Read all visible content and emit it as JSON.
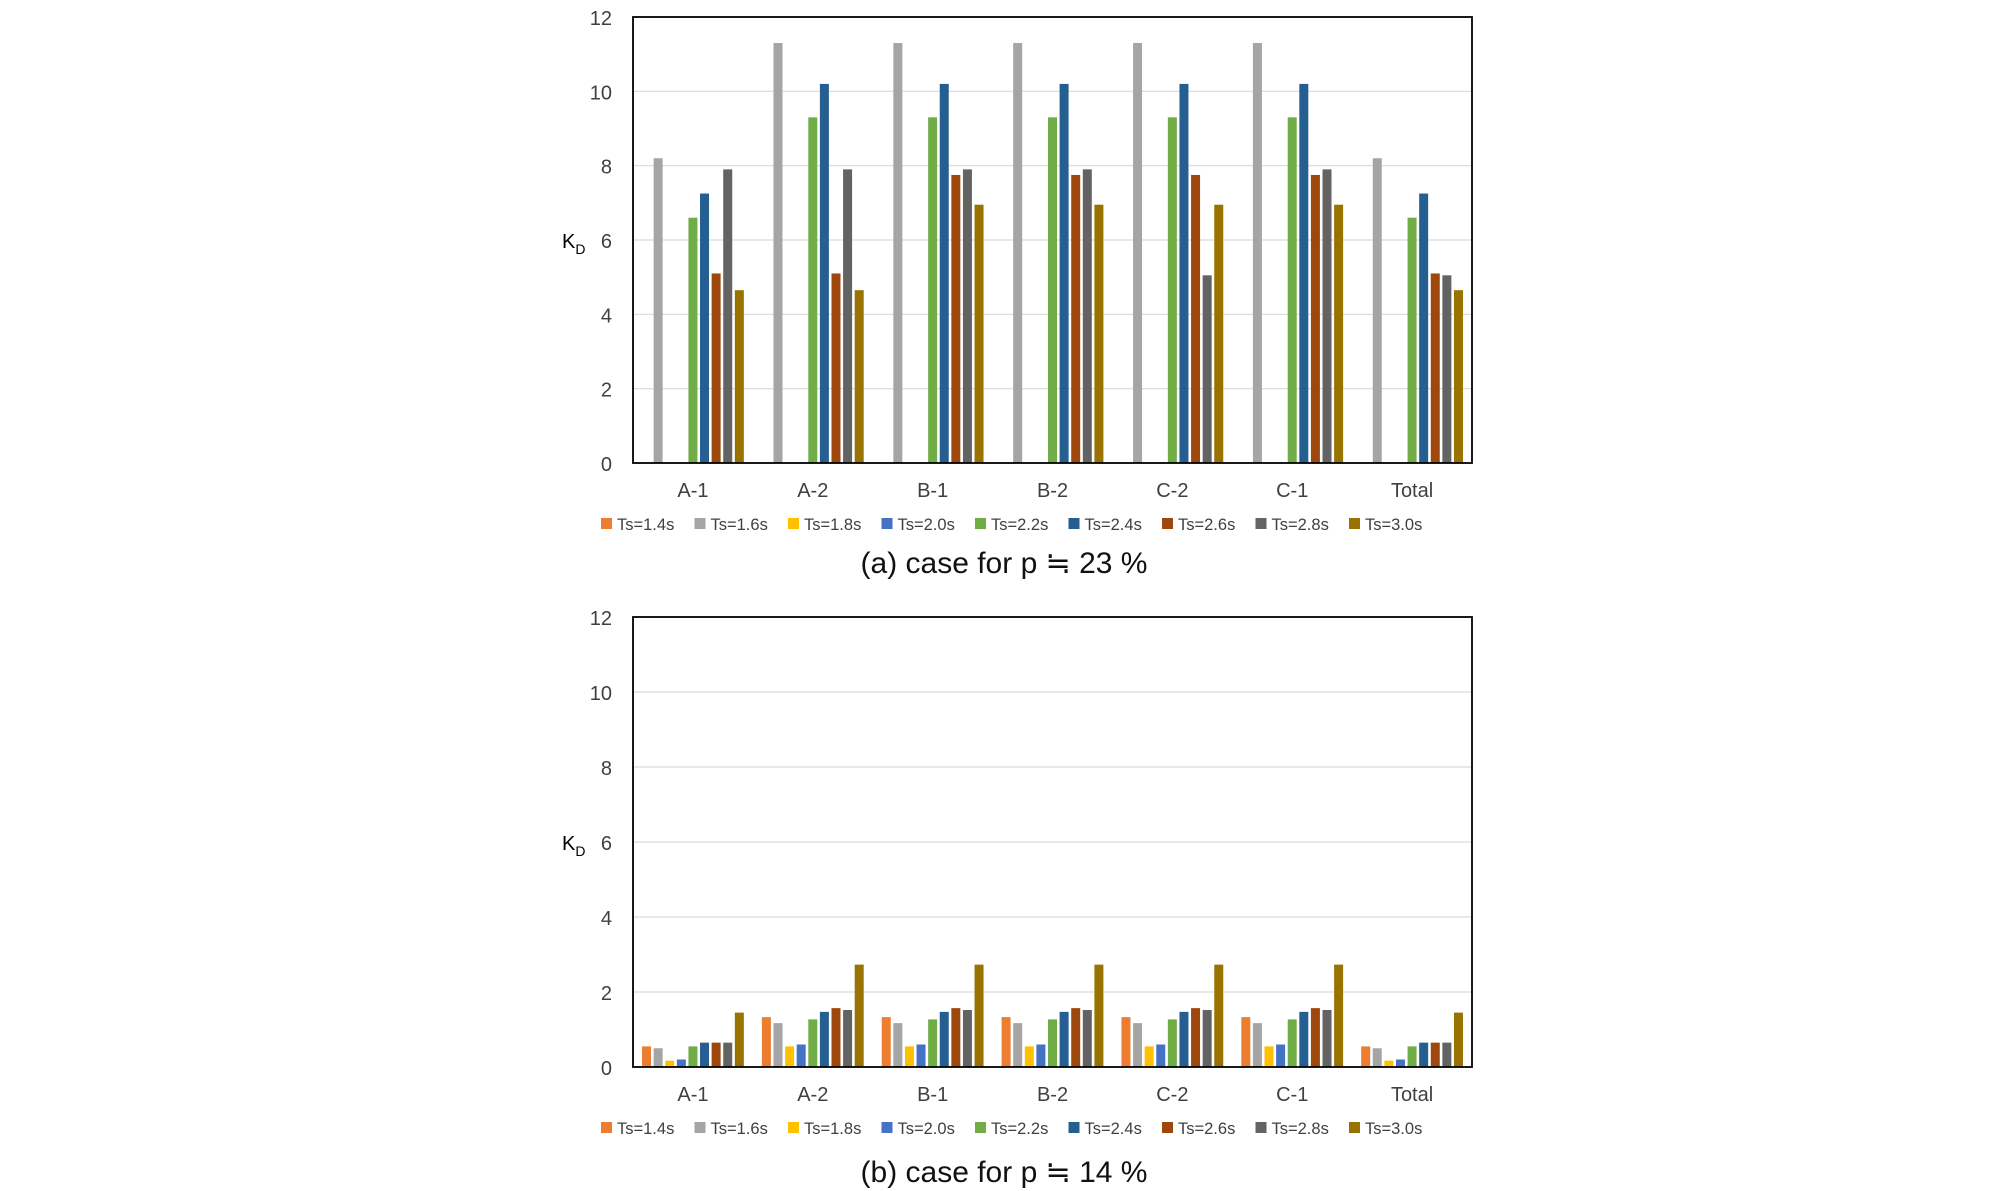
{
  "chart_data": [
    {
      "type": "bar",
      "ylabel": "KD",
      "ylim": [
        0,
        12
      ],
      "yticks": [
        0,
        2,
        4,
        6,
        8,
        10,
        12
      ],
      "grid": true,
      "legend": "bottom",
      "categories": [
        "A-1",
        "A-2",
        "B-1",
        "B-2",
        "C-2",
        "C-1",
        "Total"
      ],
      "caption": "(a) case for p ≒ 23 %",
      "series": [
        {
          "name": "Ts=1.4s",
          "color": "#ED7D31",
          "values": [
            0,
            0,
            0,
            0,
            0,
            0,
            0
          ]
        },
        {
          "name": "Ts=1.6s",
          "color": "#A5A5A5",
          "values": [
            8.2,
            11.3,
            11.3,
            11.3,
            11.3,
            11.3,
            8.2
          ]
        },
        {
          "name": "Ts=1.8s",
          "color": "#FFC000",
          "values": [
            0,
            0,
            0,
            0,
            0,
            0,
            0
          ]
        },
        {
          "name": "Ts=2.0s",
          "color": "#4472C4",
          "values": [
            0,
            0,
            0,
            0,
            0,
            0,
            0
          ]
        },
        {
          "name": "Ts=2.2s",
          "color": "#70AD47",
          "values": [
            6.6,
            9.3,
            9.3,
            9.3,
            9.3,
            9.3,
            6.6
          ]
        },
        {
          "name": "Ts=2.4s",
          "color": "#255E91",
          "values": [
            7.25,
            10.2,
            10.2,
            10.2,
            10.2,
            10.2,
            7.25
          ]
        },
        {
          "name": "Ts=2.6s",
          "color": "#9E480E",
          "values": [
            5.1,
            5.1,
            7.75,
            7.75,
            7.75,
            7.75,
            5.1
          ]
        },
        {
          "name": "Ts=2.8s",
          "color": "#636363",
          "values": [
            7.9,
            7.9,
            7.9,
            7.9,
            5.05,
            7.9,
            5.05
          ]
        },
        {
          "name": "Ts=3.0s",
          "color": "#997300",
          "values": [
            4.65,
            4.65,
            6.95,
            6.95,
            6.95,
            6.95,
            4.65
          ]
        }
      ]
    },
    {
      "type": "bar",
      "ylabel": "KD",
      "ylim": [
        0,
        12
      ],
      "yticks": [
        0,
        2,
        4,
        6,
        8,
        10,
        12
      ],
      "grid": true,
      "legend": "bottom",
      "categories": [
        "A-1",
        "A-2",
        "B-1",
        "B-2",
        "C-2",
        "C-1",
        "Total"
      ],
      "caption": "(b) case for p ≒ 14 %",
      "series": [
        {
          "name": "Ts=1.4s",
          "color": "#ED7D31",
          "values": [
            0.55,
            1.33,
            1.33,
            1.33,
            1.33,
            1.33,
            0.55
          ]
        },
        {
          "name": "Ts=1.6s",
          "color": "#A5A5A5",
          "values": [
            0.5,
            1.17,
            1.17,
            1.17,
            1.17,
            1.17,
            0.5
          ]
        },
        {
          "name": "Ts=1.8s",
          "color": "#FFC000",
          "values": [
            0.17,
            0.55,
            0.55,
            0.55,
            0.55,
            0.55,
            0.17
          ]
        },
        {
          "name": "Ts=2.0s",
          "color": "#4472C4",
          "values": [
            0.2,
            0.6,
            0.6,
            0.6,
            0.6,
            0.6,
            0.2
          ]
        },
        {
          "name": "Ts=2.2s",
          "color": "#70AD47",
          "values": [
            0.55,
            1.27,
            1.27,
            1.27,
            1.27,
            1.27,
            0.55
          ]
        },
        {
          "name": "Ts=2.4s",
          "color": "#255E91",
          "values": [
            0.65,
            1.47,
            1.47,
            1.47,
            1.47,
            1.47,
            0.65
          ]
        },
        {
          "name": "Ts=2.6s",
          "color": "#9E480E",
          "values": [
            0.65,
            1.57,
            1.57,
            1.57,
            1.57,
            1.57,
            0.65
          ]
        },
        {
          "name": "Ts=2.8s",
          "color": "#636363",
          "values": [
            0.65,
            1.52,
            1.52,
            1.52,
            1.52,
            1.52,
            0.65
          ]
        },
        {
          "name": "Ts=3.0s",
          "color": "#997300",
          "values": [
            1.45,
            2.73,
            2.73,
            2.73,
            2.73,
            2.73,
            1.45
          ]
        }
      ]
    }
  ]
}
